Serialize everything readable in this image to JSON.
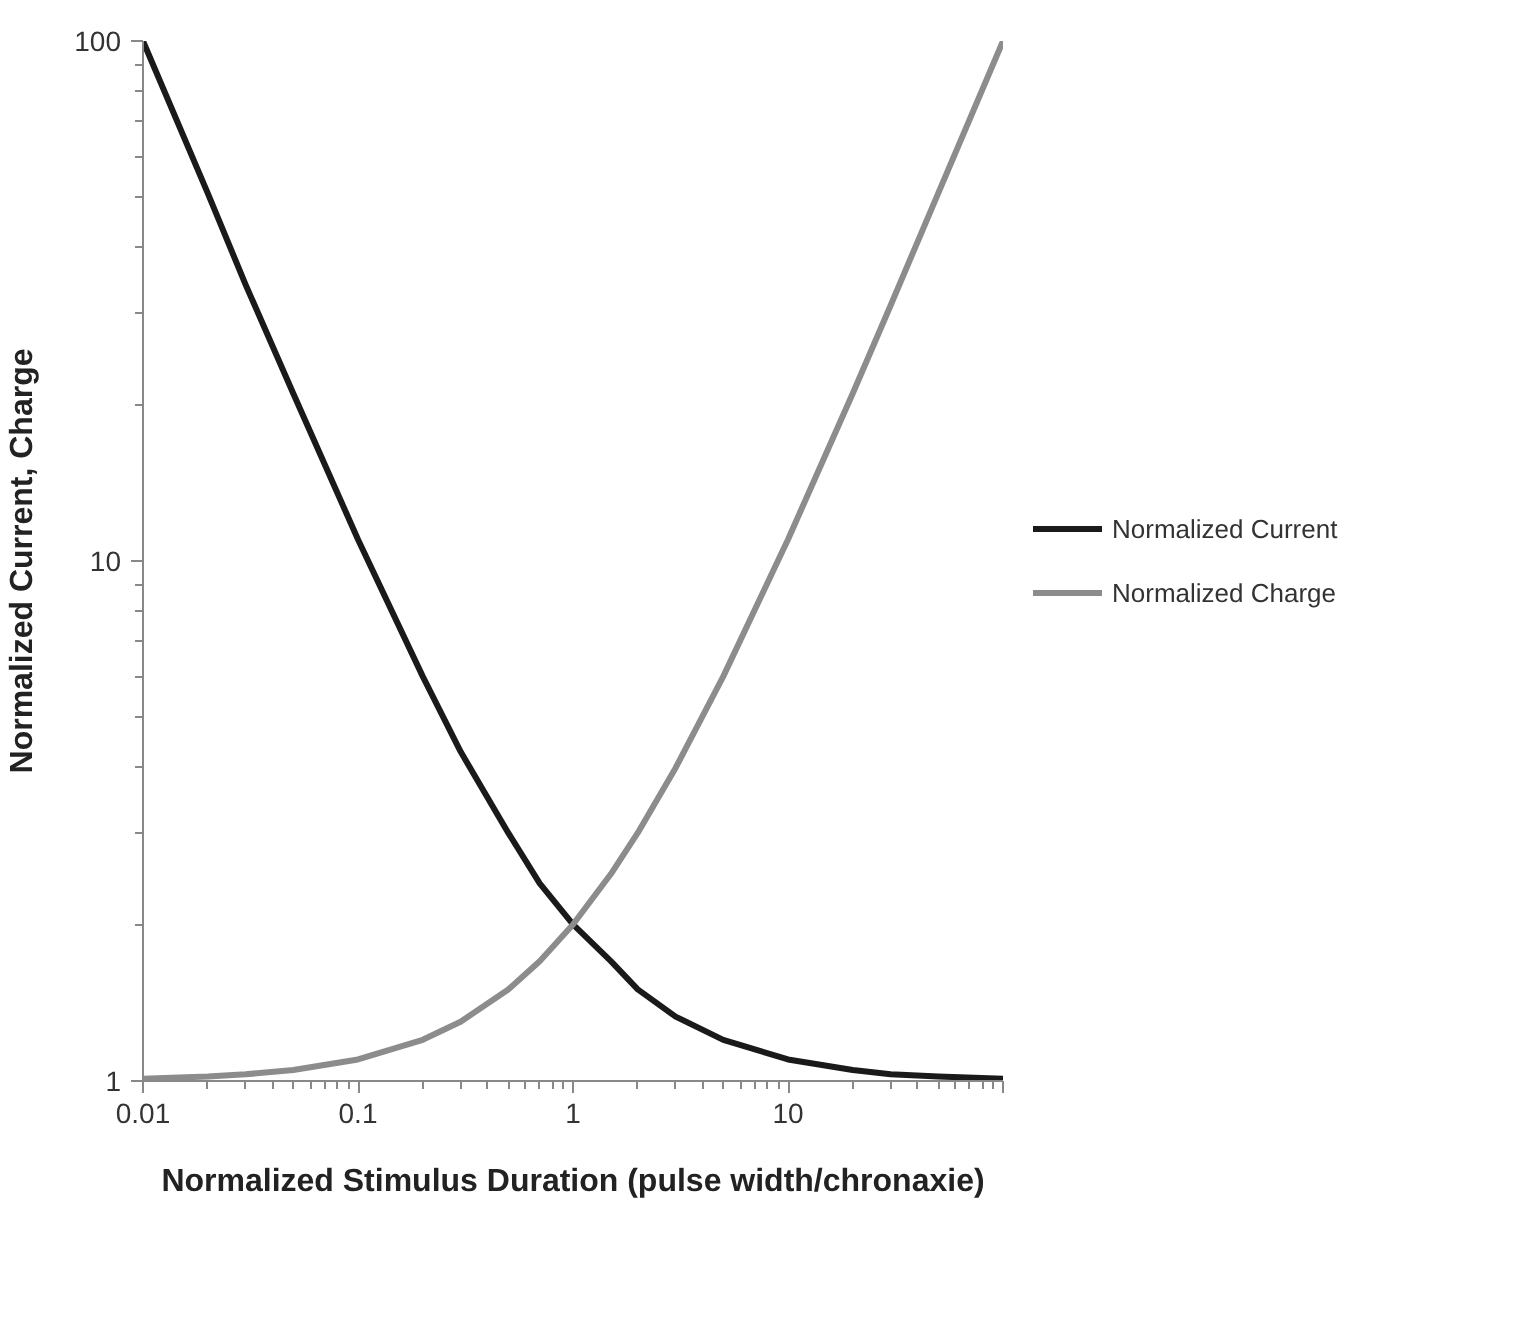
{
  "chart_data": {
    "type": "line",
    "xlabel": "Normalized Stimulus Duration (pulse width/chronaxie)",
    "ylabel": "Normalized Current, Charge",
    "x": [
      0.01,
      0.02,
      0.03,
      0.05,
      0.1,
      0.2,
      0.3,
      0.5,
      0.7,
      1,
      1.5,
      2,
      3,
      5,
      10,
      20,
      30,
      50,
      100
    ],
    "series": [
      {
        "name": "Normalized Current",
        "color": "#1a1a1a",
        "values": [
          100,
          51,
          34,
          21,
          11,
          6,
          4.3,
          3,
          2.4,
          2,
          1.7,
          1.5,
          1.33,
          1.2,
          1.1,
          1.05,
          1.03,
          1.02,
          1.01
        ]
      },
      {
        "name": "Normalized Charge",
        "color": "#8c8c8c",
        "values": [
          1.01,
          1.02,
          1.03,
          1.05,
          1.1,
          1.2,
          1.3,
          1.5,
          1.7,
          2,
          2.5,
          3,
          4,
          6,
          11,
          21,
          31,
          51,
          100
        ]
      }
    ],
    "log": "xy",
    "xlim": [
      0.01,
      100
    ],
    "ylim": [
      1,
      100
    ],
    "xticks": [
      0.01,
      0.1,
      1,
      10,
      {
        "value": 100,
        "label": null
      }
    ],
    "yticks": [
      1,
      10,
      100
    ],
    "grid": false,
    "legend": "right",
    "marker": "none",
    "line_style": "solid"
  }
}
